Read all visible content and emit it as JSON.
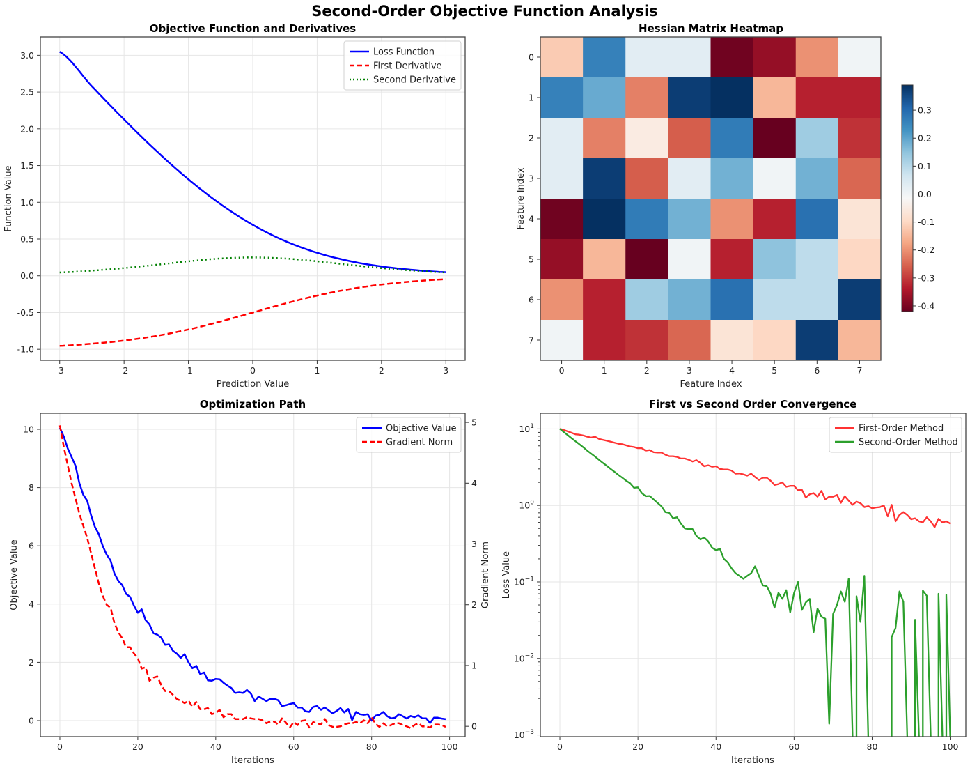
{
  "figure": {
    "suptitle": "Second-Order Objective Function Analysis"
  },
  "chart_data": [
    {
      "id": "objective",
      "type": "line",
      "title": "Objective Function and Derivatives",
      "xlabel": "Prediction Value",
      "ylabel": "Function Value",
      "xlim": [
        -3.3,
        3.3
      ],
      "ylim": [
        -1.15,
        3.25
      ],
      "xticks": [
        -3,
        -2,
        -1,
        0,
        1,
        2,
        3
      ],
      "xtick_labels": [
        "-3",
        "-2",
        "-1",
        "0",
        "1",
        "2",
        "3"
      ],
      "yticks": [
        -1.0,
        -0.5,
        0.0,
        0.5,
        1.0,
        1.5,
        2.0,
        2.5,
        3.0
      ],
      "ytick_labels": [
        "-1.0",
        "-0.5",
        "0.0",
        "0.5",
        "1.0",
        "1.5",
        "2.0",
        "2.5",
        "3.0"
      ],
      "grid": true,
      "legend_position": "top-right",
      "x": [
        -3.0,
        -2.5,
        -2.0,
        -1.5,
        -1.0,
        -0.5,
        0.0,
        0.5,
        1.0,
        1.5,
        2.0,
        2.5,
        3.0
      ],
      "series": [
        {
          "name": "Loss Function",
          "color": "#0000ff",
          "style": "solid",
          "values": [
            3.049,
            2.579,
            2.127,
            1.701,
            1.313,
            0.974,
            0.693,
            0.474,
            0.313,
            0.201,
            0.127,
            0.079,
            0.049
          ]
        },
        {
          "name": "First Derivative",
          "color": "#ff0000",
          "style": "dashed",
          "values": [
            -0.953,
            -0.924,
            -0.881,
            -0.818,
            -0.731,
            -0.622,
            -0.5,
            -0.378,
            -0.269,
            -0.182,
            -0.119,
            -0.076,
            -0.047
          ]
        },
        {
          "name": "Second Derivative",
          "color": "#008000",
          "style": "dotted",
          "values": [
            0.045,
            0.07,
            0.105,
            0.149,
            0.197,
            0.235,
            0.25,
            0.235,
            0.197,
            0.149,
            0.105,
            0.07,
            0.045
          ]
        }
      ]
    },
    {
      "id": "hessian",
      "type": "heatmap",
      "title": "Hessian Matrix Heatmap",
      "xlabel": "Feature Index",
      "ylabel": "Feature Index",
      "x_categories": [
        "0",
        "1",
        "2",
        "3",
        "4",
        "5",
        "6",
        "7"
      ],
      "y_categories": [
        "0",
        "1",
        "2",
        "3",
        "4",
        "5",
        "6",
        "7"
      ],
      "colormap": "RdBu",
      "vmin": -0.42,
      "vmax": 0.39,
      "colorbar_ticks": [
        0.3,
        0.2,
        0.1,
        0.0,
        -0.1,
        -0.2,
        -0.3,
        -0.4
      ],
      "colorbar_tick_labels": [
        "0.3",
        "0.2",
        "0.1",
        "0.0",
        "-0.1",
        "-0.2",
        "-0.3",
        "-0.4"
      ],
      "values": [
        [
          -0.12,
          0.26,
          0.03,
          0.03,
          -0.41,
          -0.37,
          -0.2,
          0.0
        ],
        [
          0.26,
          0.19,
          -0.22,
          0.37,
          0.39,
          -0.15,
          -0.33,
          -0.33
        ],
        [
          0.03,
          -0.22,
          -0.05,
          -0.26,
          0.27,
          -0.42,
          0.13,
          -0.31
        ],
        [
          0.03,
          0.37,
          -0.26,
          0.03,
          0.18,
          0.0,
          0.18,
          -0.25
        ],
        [
          -0.41,
          0.39,
          0.27,
          0.18,
          -0.2,
          -0.33,
          0.29,
          -0.07
        ],
        [
          -0.37,
          -0.15,
          -0.42,
          0.0,
          -0.33,
          0.15,
          0.09,
          -0.1
        ],
        [
          -0.2,
          -0.33,
          0.13,
          0.18,
          0.29,
          0.09,
          0.09,
          0.37
        ],
        [
          0.0,
          -0.33,
          -0.31,
          -0.25,
          -0.07,
          -0.1,
          0.37,
          -0.15
        ]
      ]
    },
    {
      "id": "optpath",
      "type": "line",
      "title": "Optimization Path",
      "xlabel": "Iterations",
      "ylabel": "Objective Value",
      "y2label": "Gradient Norm",
      "ylabel_color": "#0000ff",
      "y2label_color": "#ff0000",
      "xlim": [
        -5,
        104
      ],
      "ylim": [
        -0.55,
        10.55
      ],
      "y2lim": [
        -0.17,
        5.15
      ],
      "xticks": [
        0,
        20,
        40,
        60,
        80,
        100
      ],
      "xtick_labels": [
        "0",
        "20",
        "40",
        "60",
        "80",
        "100"
      ],
      "yticks": [
        0,
        2,
        4,
        6,
        8,
        10
      ],
      "ytick_labels": [
        "0",
        "2",
        "4",
        "6",
        "8",
        "10"
      ],
      "y2ticks": [
        0,
        1,
        2,
        3,
        4,
        5
      ],
      "y2tick_labels": [
        "0",
        "1",
        "2",
        "3",
        "4",
        "5"
      ],
      "grid": true,
      "legend_position": "top-right",
      "series": [
        {
          "name": "Objective Value",
          "color": "#0000ff",
          "style": "solid",
          "axis": "left",
          "values": [
            10.05,
            9.75,
            9.35,
            9.05,
            8.75,
            8.15,
            7.75,
            7.55,
            7.05,
            6.65,
            6.4,
            6.0,
            5.7,
            5.5,
            5.05,
            4.8,
            4.65,
            4.35,
            4.25,
            3.95,
            3.7,
            3.82,
            3.45,
            3.3,
            3.0,
            2.95,
            2.85,
            2.6,
            2.62,
            2.4,
            2.3,
            2.15,
            2.28,
            2.0,
            1.8,
            1.88,
            1.6,
            1.65,
            1.38,
            1.37,
            1.43,
            1.42,
            1.3,
            1.2,
            1.12,
            0.95,
            0.97,
            0.95,
            1.05,
            0.93,
            0.67,
            0.83,
            0.75,
            0.67,
            0.75,
            0.75,
            0.7,
            0.5,
            0.53,
            0.57,
            0.6,
            0.45,
            0.45,
            0.32,
            0.3,
            0.47,
            0.5,
            0.37,
            0.45,
            0.35,
            0.25,
            0.33,
            0.43,
            0.28,
            0.4,
            0.02,
            0.3,
            0.22,
            0.2,
            0.22,
            0.0,
            0.17,
            0.2,
            0.3,
            0.15,
            0.08,
            0.1,
            0.22,
            0.15,
            0.07,
            0.16,
            0.12,
            0.18,
            0.08,
            0.08,
            -0.08,
            0.1,
            0.1,
            0.07,
            0.05
          ]
        },
        {
          "name": "Gradient Norm",
          "color": "#ff0000",
          "style": "dashed",
          "axis": "right",
          "values": [
            4.95,
            4.6,
            4.3,
            4.0,
            3.75,
            3.5,
            3.3,
            3.1,
            2.85,
            2.6,
            2.35,
            2.15,
            2.0,
            1.95,
            1.7,
            1.55,
            1.45,
            1.3,
            1.3,
            1.2,
            1.12,
            0.95,
            0.97,
            0.75,
            0.8,
            0.82,
            0.68,
            0.58,
            0.58,
            0.52,
            0.45,
            0.42,
            0.38,
            0.42,
            0.32,
            0.4,
            0.28,
            0.28,
            0.3,
            0.2,
            0.22,
            0.27,
            0.15,
            0.2,
            0.2,
            0.12,
            0.12,
            0.12,
            0.15,
            0.13,
            0.12,
            0.12,
            0.1,
            0.05,
            0.08,
            0.08,
            0.03,
            0.13,
            0.06,
            -0.02,
            0.07,
            0.02,
            0.09,
            0.1,
            -0.02,
            0.07,
            0.05,
            0.03,
            0.12,
            0.02,
            -0.01,
            -0.01,
            0.0,
            0.03,
            0.05,
            0.05,
            0.07,
            0.05,
            0.1,
            0.05,
            0.15,
            0.04,
            -0.01,
            0.05,
            0.0,
            0.02,
            0.05,
            0.05,
            0.02,
            0.0,
            -0.03,
            0.02,
            0.05,
            0.0,
            0.0,
            -0.02,
            0.03,
            0.03,
            0.02,
            -0.01
          ]
        }
      ]
    },
    {
      "id": "convergence",
      "type": "line",
      "title": "First vs Second Order Convergence",
      "xlabel": "Iterations",
      "ylabel": "Loss Value",
      "yscale": "log",
      "xlim": [
        -5,
        104
      ],
      "ylim": [
        0.00095,
        16
      ],
      "xticks": [
        0,
        20,
        40,
        60,
        80,
        100
      ],
      "xtick_labels": [
        "0",
        "20",
        "40",
        "60",
        "80",
        "100"
      ],
      "yticks": [
        0.001,
        0.01,
        0.1,
        1,
        10
      ],
      "ytick_base": "10",
      "ytick_exponents": [
        "−3",
        "−2",
        "−1",
        "0",
        "1"
      ],
      "grid": true,
      "legend_position": "top-right",
      "series": [
        {
          "name": "First-Order Method",
          "color": "#ff3333",
          "style": "solid",
          "values": [
            10.0,
            9.7,
            9.3,
            8.9,
            8.5,
            8.4,
            8.2,
            7.9,
            7.7,
            7.9,
            7.4,
            7.2,
            7.0,
            6.8,
            6.6,
            6.4,
            6.3,
            6.1,
            5.9,
            5.8,
            5.6,
            5.6,
            5.2,
            5.3,
            4.95,
            4.9,
            4.9,
            4.6,
            4.4,
            4.4,
            4.3,
            4.1,
            4.1,
            3.95,
            3.75,
            3.9,
            3.6,
            3.25,
            3.35,
            3.2,
            3.25,
            3.0,
            2.95,
            2.95,
            2.85,
            2.6,
            2.62,
            2.55,
            2.45,
            2.6,
            2.35,
            2.15,
            2.3,
            2.3,
            2.1,
            1.85,
            1.9,
            2.0,
            1.75,
            1.8,
            1.8,
            1.58,
            1.6,
            1.27,
            1.4,
            1.45,
            1.3,
            1.55,
            1.2,
            1.3,
            1.3,
            1.37,
            1.08,
            1.32,
            1.15,
            1.02,
            1.12,
            1.07,
            0.95,
            0.98,
            0.92,
            0.94,
            0.95,
            1.0,
            0.72,
            1.02,
            0.62,
            0.75,
            0.82,
            0.75,
            0.66,
            0.68,
            0.62,
            0.6,
            0.7,
            0.62,
            0.52,
            0.67,
            0.6,
            0.62,
            0.58
          ]
        },
        {
          "name": "Second-Order Method",
          "color": "#2ca02c",
          "style": "solid",
          "values": [
            10.0,
            9.1,
            8.3,
            7.55,
            6.9,
            6.3,
            5.75,
            5.2,
            4.75,
            4.35,
            3.95,
            3.6,
            3.3,
            3.0,
            2.75,
            2.5,
            2.3,
            2.1,
            1.95,
            1.7,
            1.72,
            1.45,
            1.32,
            1.33,
            1.2,
            1.08,
            0.98,
            0.82,
            0.8,
            0.68,
            0.7,
            0.58,
            0.5,
            0.49,
            0.49,
            0.4,
            0.36,
            0.38,
            0.34,
            0.28,
            0.26,
            0.27,
            0.2,
            0.18,
            0.15,
            0.13,
            0.12,
            0.11,
            0.12,
            0.13,
            0.16,
            0.12,
            0.09,
            0.088,
            0.07,
            0.046,
            0.072,
            0.06,
            0.078,
            0.04,
            0.072,
            0.1,
            0.043,
            0.054,
            0.06,
            0.022,
            0.045,
            0.035,
            0.033,
            0.0014,
            0.038,
            0.05,
            0.075,
            0.055,
            0.11,
            null,
            0.065,
            0.03,
            0.12,
            null,
            null,
            null,
            null,
            null,
            null,
            0.019,
            0.025,
            0.075,
            0.055,
            null,
            null,
            0.032,
            null,
            0.077,
            0.066,
            null,
            null,
            0.07,
            null,
            0.068,
            null
          ]
        }
      ]
    }
  ]
}
